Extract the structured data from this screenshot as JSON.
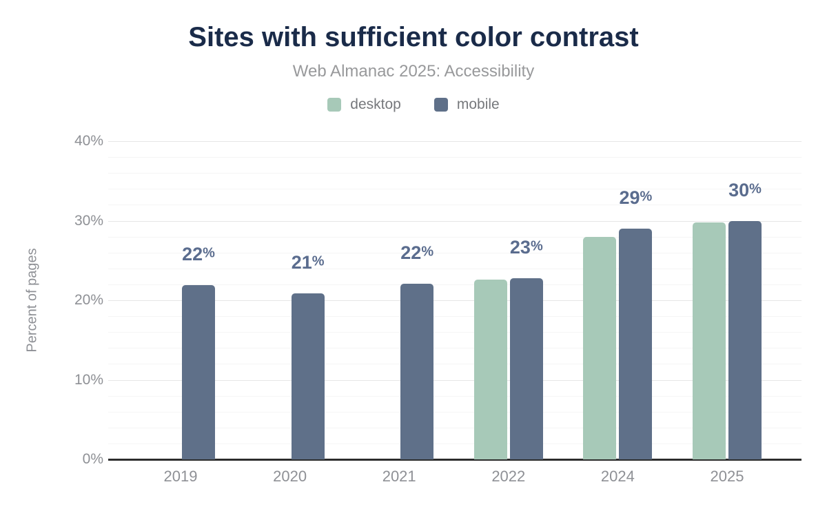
{
  "chart_data": {
    "type": "bar",
    "title": "Sites with sufficient color contrast",
    "subtitle": "Web Almanac 2025: Accessibility",
    "ylabel": "Percent of pages",
    "xlabel": "",
    "categories": [
      "2019",
      "2020",
      "2021",
      "2022",
      "2024",
      "2025"
    ],
    "series": [
      {
        "name": "desktop",
        "color": "#a7c9b8",
        "values": [
          null,
          null,
          null,
          22.6,
          28.0,
          29.8
        ]
      },
      {
        "name": "mobile",
        "color": "#5f7089",
        "values": [
          21.9,
          20.9,
          22.1,
          22.8,
          29.0,
          30.0
        ]
      }
    ],
    "data_labels": [
      "22%",
      "21%",
      "22%",
      "23%",
      "29%",
      "30%"
    ],
    "ylim": [
      0,
      40
    ],
    "yticks": [
      "0%",
      "10%",
      "20%",
      "30%",
      "40%"
    ],
    "grid": {
      "minor_step": 2,
      "major_step": 10,
      "gridlines": "on"
    },
    "legend_position": "top-center",
    "colors": {
      "title": "#1a2b49",
      "subtitle": "#98999b",
      "axis_text": "#8e9095",
      "data_label": "#5a6c8e",
      "axis_line": "#2d2d2d"
    }
  }
}
